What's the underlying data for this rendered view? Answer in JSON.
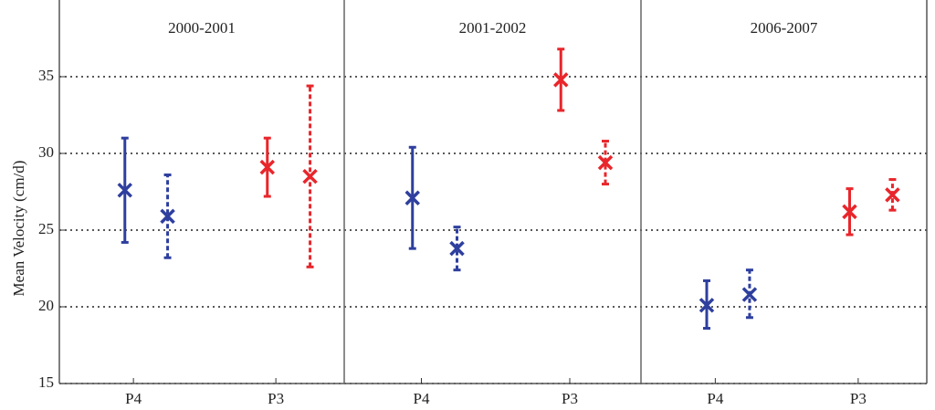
{
  "chart_data": [
    {
      "type": "errorbar",
      "title": "2000-2001",
      "ylabel": "Mean Velocity (cm/d)",
      "ylim": [
        15,
        40
      ],
      "yticks": [
        15,
        20,
        25,
        30,
        35
      ],
      "grid": true,
      "categories": [
        "P4",
        "P3"
      ],
      "series": [
        {
          "style": "solid",
          "colors": [
            "#2e3f9e",
            "#e8262b"
          ],
          "values": [
            27.6,
            29.1
          ],
          "low": [
            24.2,
            27.2
          ],
          "high": [
            31.0,
            31.0
          ]
        },
        {
          "style": "dashed",
          "colors": [
            "#2e3f9e",
            "#e8262b"
          ],
          "values": [
            25.9,
            28.5
          ],
          "low": [
            23.2,
            22.6
          ],
          "high": [
            28.6,
            34.4
          ]
        }
      ]
    },
    {
      "type": "errorbar",
      "title": "2001-2002",
      "categories": [
        "P4",
        "P3"
      ],
      "series": [
        {
          "style": "solid",
          "colors": [
            "#2e3f9e",
            "#e8262b"
          ],
          "values": [
            27.1,
            34.8
          ],
          "low": [
            23.8,
            32.8
          ],
          "high": [
            30.4,
            36.8
          ]
        },
        {
          "style": "dashed",
          "colors": [
            "#2e3f9e",
            "#e8262b"
          ],
          "values": [
            23.8,
            29.4
          ],
          "low": [
            22.4,
            28.0
          ],
          "high": [
            25.2,
            30.8
          ]
        }
      ]
    },
    {
      "type": "errorbar",
      "title": "2006-2007",
      "categories": [
        "P4",
        "P3"
      ],
      "series": [
        {
          "style": "solid",
          "colors": [
            "#2e3f9e",
            "#e8262b"
          ],
          "values": [
            20.1,
            26.2
          ],
          "low": [
            18.6,
            24.7
          ],
          "high": [
            21.7,
            27.7
          ]
        },
        {
          "style": "dashed",
          "colors": [
            "#2e3f9e",
            "#e8262b"
          ],
          "values": [
            20.8,
            27.3
          ],
          "low": [
            19.3,
            26.3
          ],
          "high": [
            22.4,
            28.3
          ]
        }
      ]
    }
  ]
}
